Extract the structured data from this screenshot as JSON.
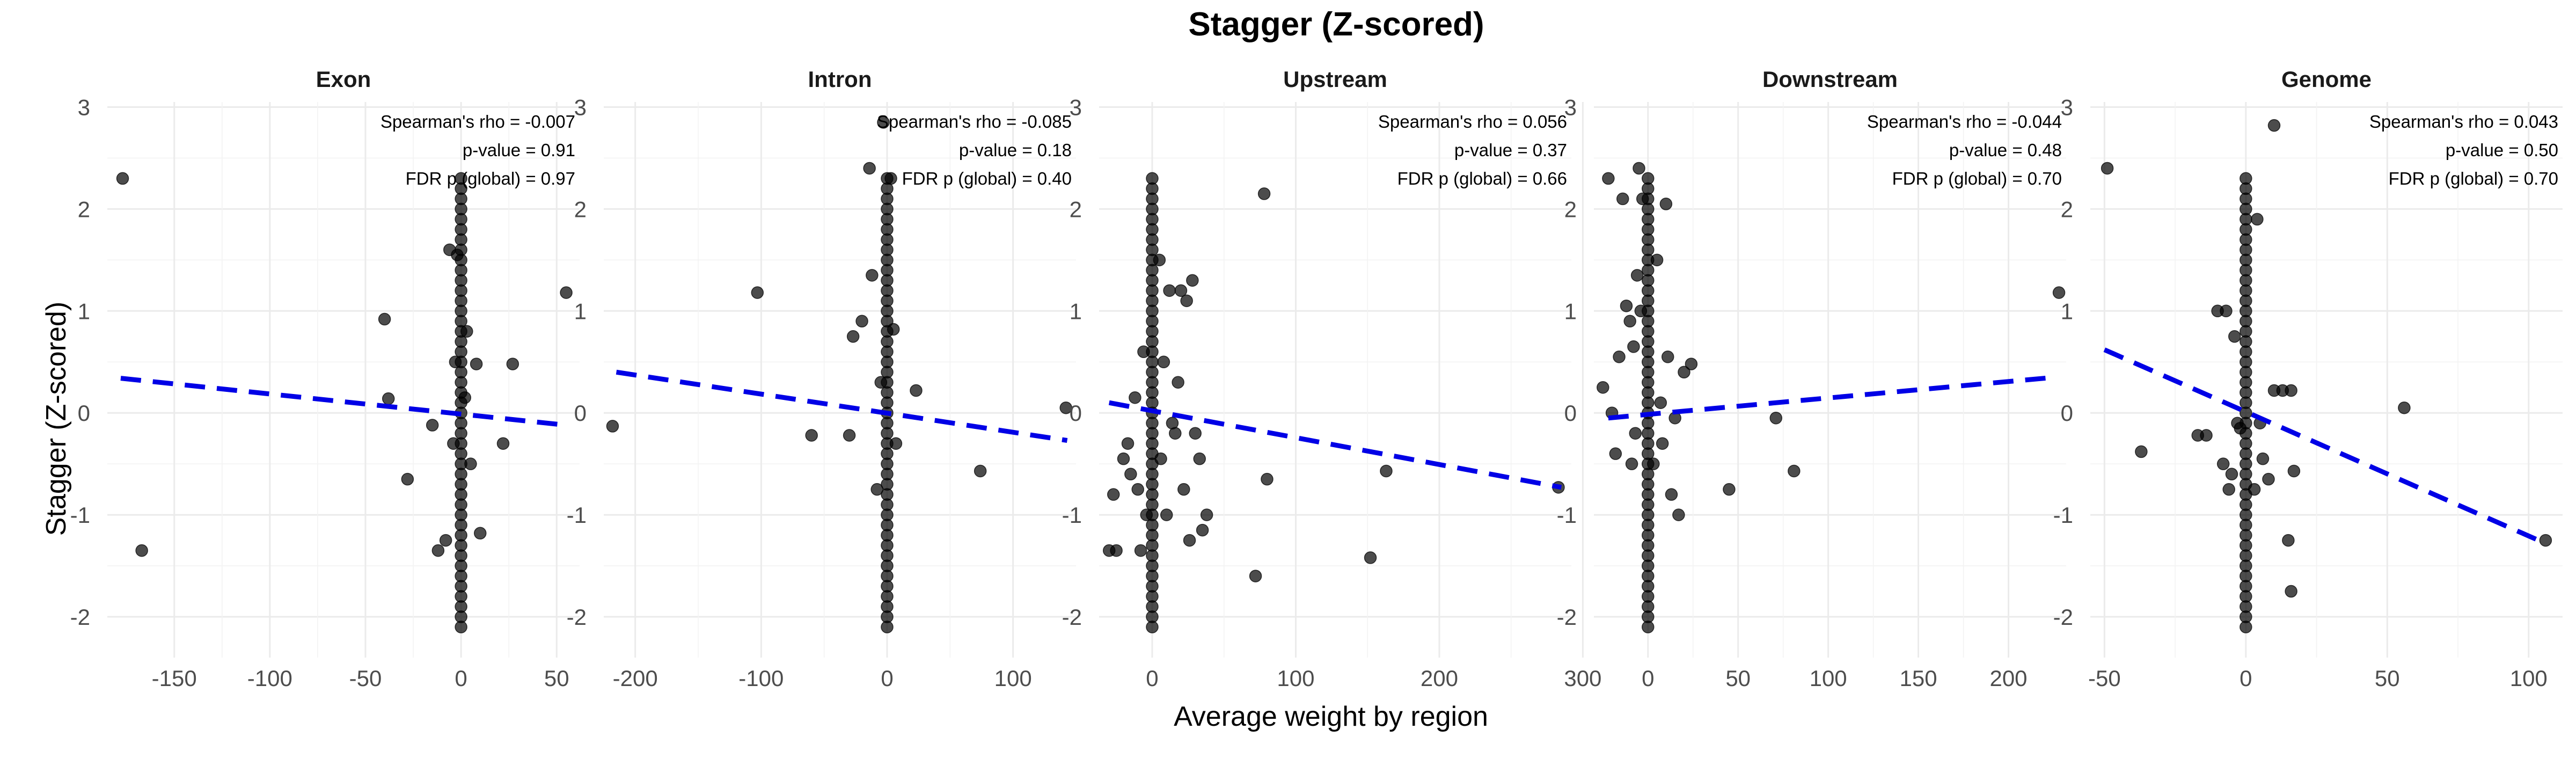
{
  "chart_data": {
    "type": "scatter",
    "title": "Stagger (Z-scored)",
    "xlabel": "Average weight by region",
    "ylabel": "Stagger (Z-scored)",
    "ylim": [
      -2.4,
      3.05
    ],
    "yticks": [
      -2,
      -1,
      0,
      1,
      2,
      3
    ],
    "grid": true,
    "facets": [
      {
        "name": "Exon",
        "xlim": [
          -185,
          62
        ],
        "xticks": [
          -150,
          -100,
          -50,
          0,
          50
        ],
        "fit": {
          "x": [
            -178,
            55
          ],
          "y": [
            0.34,
            -0.12
          ]
        },
        "annotation": [
          "Spearman's rho = -0.007",
          "p-value = 0.91",
          "FDR p (global) = 0.97"
        ],
        "points": [
          {
            "x": -177,
            "y": 2.3
          },
          {
            "x": -167,
            "y": -1.35
          },
          {
            "x": -40,
            "y": 0.92
          },
          {
            "x": -38,
            "y": 0.14
          },
          {
            "x": -28,
            "y": -0.65
          },
          {
            "x": -15,
            "y": -0.12
          },
          {
            "x": -12,
            "y": -1.35
          },
          {
            "x": -8,
            "y": -1.25
          },
          {
            "x": -6,
            "y": 1.6
          },
          {
            "x": -4,
            "y": -0.3
          },
          {
            "x": -3,
            "y": 0.5
          },
          {
            "x": -2,
            "y": 1.55
          },
          {
            "x": 2,
            "y": 0.15
          },
          {
            "x": 3,
            "y": 0.8
          },
          {
            "x": 5,
            "y": -0.5
          },
          {
            "x": 8,
            "y": 0.48
          },
          {
            "x": 10,
            "y": -1.18
          },
          {
            "x": 22,
            "y": -0.3
          },
          {
            "x": 27,
            "y": 0.48
          },
          {
            "x": 55,
            "y": 1.18
          }
        ]
      },
      {
        "name": "Intron",
        "xlim": [
          -225,
          150
        ],
        "xticks": [
          -200,
          -100,
          0,
          100
        ],
        "fit": {
          "x": [
            -215,
            143
          ],
          "y": [
            0.4,
            -0.27
          ]
        },
        "annotation": [
          "Spearman's rho = -0.085",
          "p-value = 0.18",
          "FDR p (global) = 0.40"
        ],
        "points": [
          {
            "x": -218,
            "y": -0.13
          },
          {
            "x": -103,
            "y": 1.18
          },
          {
            "x": -60,
            "y": -0.22
          },
          {
            "x": -30,
            "y": -0.22
          },
          {
            "x": -27,
            "y": 0.75
          },
          {
            "x": -20,
            "y": 0.9
          },
          {
            "x": -14,
            "y": 2.4
          },
          {
            "x": -12,
            "y": 1.35
          },
          {
            "x": -8,
            "y": -0.75
          },
          {
            "x": -5,
            "y": 0.3
          },
          {
            "x": -3,
            "y": 2.85
          },
          {
            "x": 3,
            "y": 2.3
          },
          {
            "x": 5,
            "y": 0.82
          },
          {
            "x": 7,
            "y": -0.3
          },
          {
            "x": 23,
            "y": 0.22
          },
          {
            "x": 74,
            "y": -0.57
          },
          {
            "x": 142,
            "y": 0.05
          }
        ]
      },
      {
        "name": "Upstream",
        "xlim": [
          -37,
          292
        ],
        "xticks": [
          0,
          100,
          200,
          300
        ],
        "fit": {
          "x": [
            -30,
            285
          ],
          "y": [
            0.1,
            -0.73
          ]
        },
        "annotation": [
          "Spearman's rho = 0.056",
          "p-value = 0.37",
          "FDR p (global) = 0.66"
        ],
        "points": [
          {
            "x": -30,
            "y": -1.35
          },
          {
            "x": -27,
            "y": -0.8
          },
          {
            "x": -25,
            "y": -1.35
          },
          {
            "x": -20,
            "y": -0.45
          },
          {
            "x": -17,
            "y": -0.3
          },
          {
            "x": -15,
            "y": -0.6
          },
          {
            "x": -12,
            "y": 0.15
          },
          {
            "x": -10,
            "y": -0.75
          },
          {
            "x": -8,
            "y": -1.35
          },
          {
            "x": -6,
            "y": 0.6
          },
          {
            "x": -4,
            "y": -1.0
          },
          {
            "x": 5,
            "y": 1.5
          },
          {
            "x": 6,
            "y": -0.45
          },
          {
            "x": 8,
            "y": 0.5
          },
          {
            "x": 10,
            "y": -1.0
          },
          {
            "x": 12,
            "y": 1.2
          },
          {
            "x": 14,
            "y": -0.1
          },
          {
            "x": 16,
            "y": -0.2
          },
          {
            "x": 18,
            "y": 0.3
          },
          {
            "x": 20,
            "y": 1.2
          },
          {
            "x": 22,
            "y": -0.75
          },
          {
            "x": 24,
            "y": 1.1
          },
          {
            "x": 26,
            "y": -1.25
          },
          {
            "x": 28,
            "y": 1.3
          },
          {
            "x": 30,
            "y": -0.2
          },
          {
            "x": 33,
            "y": -0.45
          },
          {
            "x": 35,
            "y": -1.15
          },
          {
            "x": 38,
            "y": -1.0
          },
          {
            "x": 72,
            "y": -1.6
          },
          {
            "x": 78,
            "y": 2.15
          },
          {
            "x": 80,
            "y": -0.65
          },
          {
            "x": 152,
            "y": -1.42
          },
          {
            "x": 163,
            "y": -0.57
          },
          {
            "x": 283,
            "y": -0.73
          }
        ]
      },
      {
        "name": "Downstream",
        "xlim": [
          -30,
          232
        ],
        "xticks": [
          0,
          50,
          100,
          150,
          200
        ],
        "fit": {
          "x": [
            -22,
            226
          ],
          "y": [
            -0.05,
            0.35
          ]
        },
        "annotation": [
          "Spearman's rho = -0.044",
          "p-value = 0.48",
          "FDR p (global) = 0.70"
        ],
        "points": [
          {
            "x": -25,
            "y": 0.25
          },
          {
            "x": -22,
            "y": 2.3
          },
          {
            "x": -20,
            "y": 0.0
          },
          {
            "x": -18,
            "y": -0.4
          },
          {
            "x": -16,
            "y": 0.55
          },
          {
            "x": -14,
            "y": 2.1
          },
          {
            "x": -12,
            "y": 1.05
          },
          {
            "x": -10,
            "y": 0.9
          },
          {
            "x": -9,
            "y": -0.5
          },
          {
            "x": -8,
            "y": 0.65
          },
          {
            "x": -7,
            "y": -0.2
          },
          {
            "x": -6,
            "y": 1.35
          },
          {
            "x": -5,
            "y": 2.4
          },
          {
            "x": -4,
            "y": 1.0
          },
          {
            "x": -3,
            "y": 2.1
          },
          {
            "x": 3,
            "y": -0.5
          },
          {
            "x": 5,
            "y": 1.5
          },
          {
            "x": 7,
            "y": 0.1
          },
          {
            "x": 8,
            "y": -0.3
          },
          {
            "x": 10,
            "y": 2.05
          },
          {
            "x": 11,
            "y": 0.55
          },
          {
            "x": 13,
            "y": -0.8
          },
          {
            "x": 15,
            "y": -0.05
          },
          {
            "x": 17,
            "y": -1.0
          },
          {
            "x": 20,
            "y": 0.4
          },
          {
            "x": 24,
            "y": 0.48
          },
          {
            "x": 45,
            "y": -0.75
          },
          {
            "x": 71,
            "y": -0.05
          },
          {
            "x": 81,
            "y": -0.57
          },
          {
            "x": 228,
            "y": 1.18
          }
        ]
      },
      {
        "name": "Genome",
        "xlim": [
          -55,
          112
        ],
        "xticks": [
          -50,
          0,
          50,
          100
        ],
        "fit": {
          "x": [
            -50,
            106
          ],
          "y": [
            0.62,
            -1.28
          ]
        },
        "annotation": [
          "Spearman's rho = 0.043",
          "p-value = 0.50",
          "FDR p (global) = 0.70"
        ],
        "points": [
          {
            "x": -49,
            "y": 2.4
          },
          {
            "x": -37,
            "y": -0.38
          },
          {
            "x": -17,
            "y": -0.22
          },
          {
            "x": -14,
            "y": -0.22
          },
          {
            "x": -10,
            "y": 1.0
          },
          {
            "x": -8,
            "y": -0.5
          },
          {
            "x": -7,
            "y": 1.0
          },
          {
            "x": -6,
            "y": -0.75
          },
          {
            "x": -5,
            "y": -0.6
          },
          {
            "x": -4,
            "y": 0.75
          },
          {
            "x": -3,
            "y": -0.1
          },
          {
            "x": -2,
            "y": -0.15
          },
          {
            "x": 3,
            "y": -0.75
          },
          {
            "x": 4,
            "y": 1.9
          },
          {
            "x": 5,
            "y": -0.1
          },
          {
            "x": 6,
            "y": -0.45
          },
          {
            "x": 8,
            "y": -0.65
          },
          {
            "x": 10,
            "y": 0.22
          },
          {
            "x": 10,
            "y": 2.82
          },
          {
            "x": 13,
            "y": 0.22
          },
          {
            "x": 15,
            "y": -1.25
          },
          {
            "x": 16,
            "y": 0.22
          },
          {
            "x": 16,
            "y": -1.75
          },
          {
            "x": 17,
            "y": -0.57
          },
          {
            "x": 56,
            "y": 0.05
          },
          {
            "x": 106,
            "y": -1.25
          }
        ]
      }
    ]
  }
}
